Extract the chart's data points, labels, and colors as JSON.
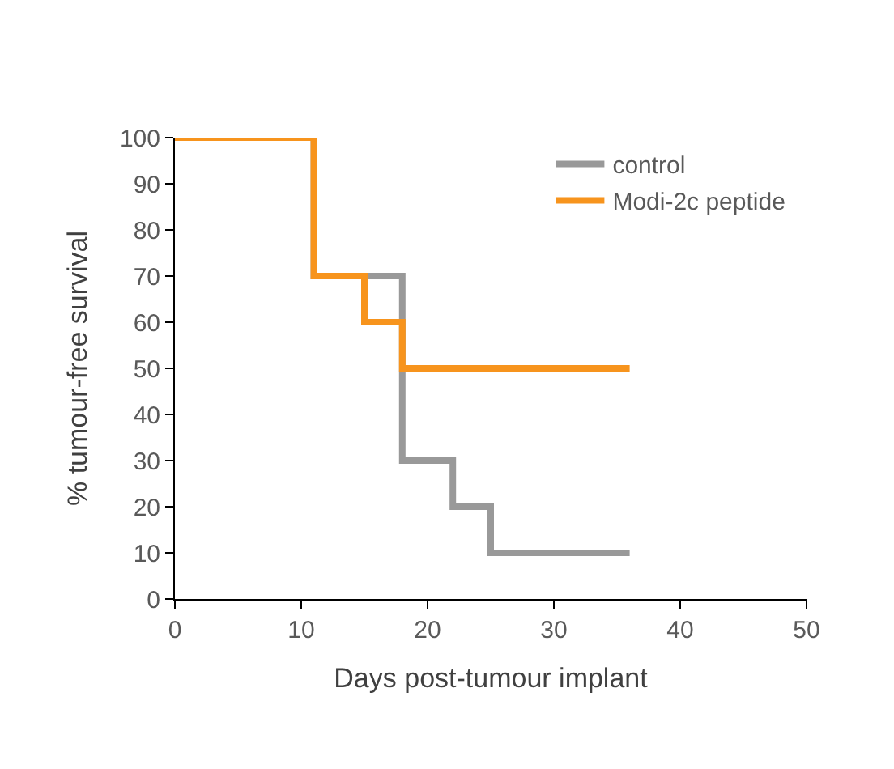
{
  "chart_data": {
    "type": "step",
    "xlabel": "Days post-tumour implant",
    "ylabel": "% tumour-free survival",
    "series": [
      {
        "name": "control",
        "color": "#999999",
        "x": [
          0,
          11,
          18,
          22,
          25,
          36
        ],
        "values": [
          100,
          70,
          30,
          20,
          10,
          10
        ]
      },
      {
        "name": "Modi-2c peptide",
        "color": "#f7941d",
        "x": [
          0,
          11,
          15,
          18,
          36
        ],
        "values": [
          100,
          70,
          60,
          50,
          50
        ]
      }
    ],
    "xlim": [
      0,
      50
    ],
    "xticks": [
      0,
      10,
      20,
      30,
      40,
      50
    ],
    "ylim": [
      0,
      100
    ],
    "yticks": [
      0,
      10,
      20,
      30,
      40,
      50,
      60,
      70,
      80,
      90,
      100
    ],
    "legend": "top right",
    "marker": "none",
    "line_style": "solid"
  }
}
